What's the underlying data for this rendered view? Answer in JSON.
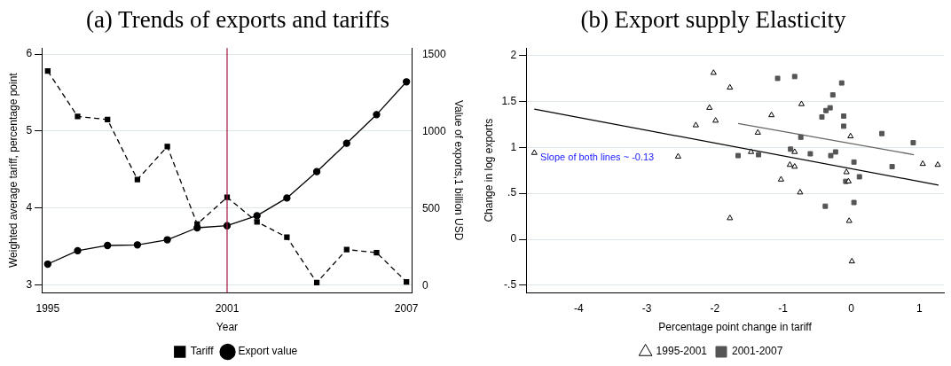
{
  "chart_data": [
    {
      "type": "line",
      "title": "(a) Trends of exports and tariffs",
      "xlabel": "Year",
      "ylabel": "Weighted average tariff, percentage point",
      "y2label": "Value of exports,1 billion USD",
      "x": [
        1995,
        1996,
        1997,
        1998,
        1999,
        2000,
        2001,
        2002,
        2003,
        2004,
        2005,
        2006,
        2007
      ],
      "series": [
        {
          "name": "Tariff",
          "color": "#000000",
          "line_style": "dashed",
          "marker": "square",
          "values": [
            5.78,
            5.19,
            5.15,
            4.37,
            4.8,
            3.79,
            4.14,
            3.82,
            3.62,
            3.03,
            3.46,
            3.42,
            3.04
          ]
        },
        {
          "name": "Export value",
          "color": "#000000",
          "line_style": "solid",
          "marker": "circle",
          "axis": "y2",
          "values": [
            139,
            226,
            260,
            264,
            297,
            375,
            388,
            453,
            568,
            739,
            923,
            1109,
            1322
          ]
        }
      ],
      "xlim": [
        1994.8,
        2007.2
      ],
      "xticks": [
        1995,
        2001,
        2007
      ],
      "ylim": [
        2.9,
        6.08
      ],
      "yticks": [
        3,
        4,
        5,
        6
      ],
      "y2lim": [
        -46,
        1541
      ],
      "y2ticks": [
        0,
        500,
        1000,
        1500
      ],
      "ref_lines": [
        {
          "axis": "x",
          "value": 2001,
          "color": "#a0143c"
        }
      ],
      "grid": "y",
      "legend": "bottom"
    },
    {
      "type": "scatter",
      "title": "(b) Export supply Elasticity",
      "xlabel": "Percentage point change in tariff",
      "ylabel": "Change in log exports",
      "annotations": [
        "Slope of both lines ~ -0.13"
      ],
      "series": [
        {
          "name": "1995-2001",
          "color": "#000000",
          "marker": "triangle",
          "x": [
            -4.65,
            -2.54,
            -2.28,
            -2.08,
            -2.02,
            -1.99,
            -1.78,
            -1.78,
            -1.47,
            -1.37,
            -1.17,
            -1.03,
            -0.9,
            -0.83,
            -0.83,
            -0.75,
            -0.73,
            -0.07,
            -0.04,
            -0.03,
            -0.01,
            0.01,
            1.05,
            1.27
          ],
          "values": [
            0.94,
            0.9,
            1.24,
            1.43,
            1.81,
            1.29,
            1.65,
            0.23,
            0.95,
            1.16,
            1.35,
            0.65,
            0.81,
            0.79,
            0.95,
            0.51,
            1.47,
            0.73,
            0.63,
            0.2,
            1.12,
            -0.24,
            0.82,
            0.81
          ]
        },
        {
          "name": "2001-2007",
          "color": "#555555",
          "marker": "square",
          "x": [
            -1.66,
            -1.36,
            -1.08,
            -0.89,
            -0.83,
            -0.74,
            -0.6,
            -0.43,
            -0.38,
            -0.37,
            -0.31,
            -0.3,
            -0.27,
            -0.23,
            -0.14,
            -0.11,
            -0.11,
            -0.08,
            0.04,
            0.04,
            0.12,
            0.45,
            0.6,
            0.91
          ],
          "values": [
            0.91,
            0.92,
            1.75,
            0.98,
            1.77,
            1.11,
            0.93,
            1.33,
            0.36,
            1.4,
            1.43,
            0.91,
            1.57,
            0.95,
            1.7,
            1.34,
            1.23,
            0.63,
            0.84,
            0.4,
            0.68,
            1.15,
            0.79,
            1.05
          ]
        },
        {
          "type": "line",
          "color": "#000000",
          "marker": "none",
          "x": [
            -4.65,
            1.28
          ],
          "values": [
            1.415,
            0.59
          ]
        },
        {
          "type": "line",
          "color": "#666666",
          "marker": "none",
          "x": [
            -1.66,
            0.92
          ],
          "values": [
            1.26,
            0.92
          ]
        }
      ],
      "xlim": [
        -4.77,
        1.36
      ],
      "xticks": [
        -4,
        -3,
        -2,
        -1,
        0,
        1
      ],
      "ylim": [
        -0.58,
        2.08
      ],
      "yticks": [
        {
          "value": -0.5,
          "label": "-.5"
        },
        0,
        {
          "value": 0.5,
          "label": ".5"
        },
        1,
        1.5,
        2
      ],
      "grid": "y",
      "legend": "bottom"
    }
  ]
}
